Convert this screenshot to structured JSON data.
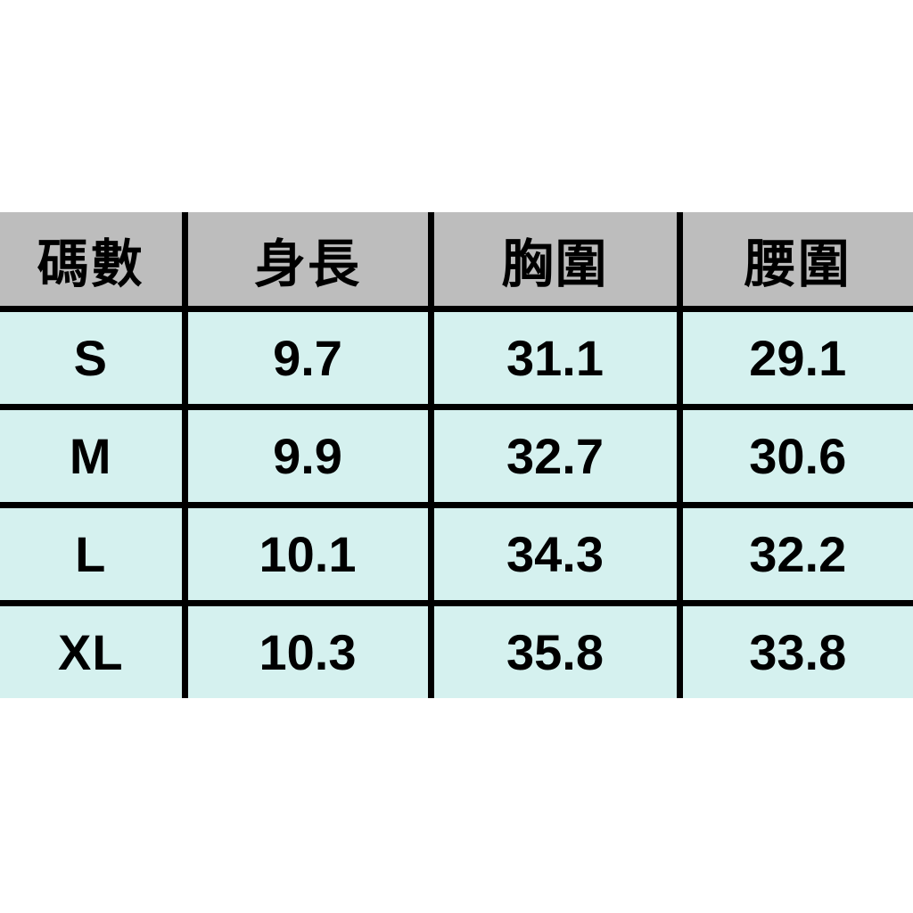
{
  "colors": {
    "header_bg": "#bdbdbd",
    "body_bg": "#d5f1ef",
    "border": "#000000",
    "text": "#000000",
    "page_bg": "#ffffff"
  },
  "table": {
    "headers": [
      "碼數",
      "身長",
      "胸圍",
      "腰圍"
    ],
    "rows": [
      [
        "S",
        "9.7",
        "31.1",
        "29.1"
      ],
      [
        "M",
        "9.9",
        "32.7",
        "30.6"
      ],
      [
        "L",
        "10.1",
        "34.3",
        "32.2"
      ],
      [
        "XL",
        "10.3",
        "35.8",
        "33.8"
      ]
    ]
  },
  "chart_data": {
    "type": "table",
    "title": "",
    "columns": [
      "碼數",
      "身長",
      "胸圍",
      "腰圍"
    ],
    "rows": [
      [
        "S",
        9.7,
        31.1,
        29.1
      ],
      [
        "M",
        9.9,
        32.7,
        30.6
      ],
      [
        "L",
        10.1,
        34.3,
        32.2
      ],
      [
        "XL",
        10.3,
        35.8,
        33.8
      ]
    ],
    "layout_hints": {
      "header_background": "#bdbdbd",
      "body_background": "#d5f1ef",
      "grid": true,
      "outer_border": false
    }
  }
}
